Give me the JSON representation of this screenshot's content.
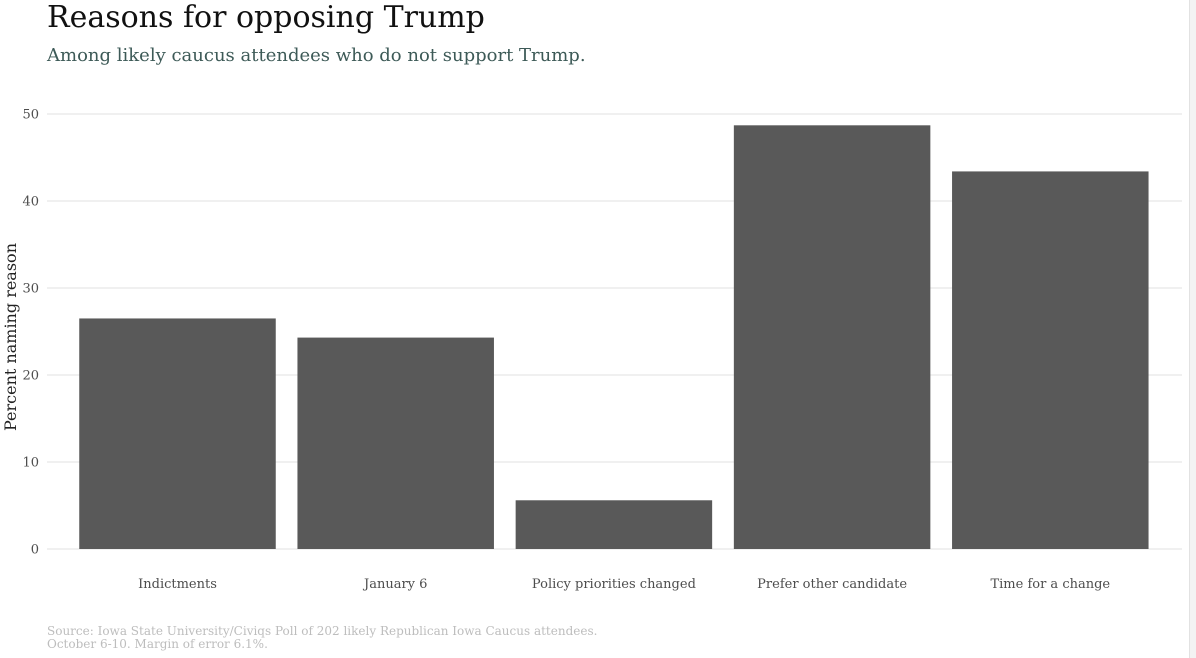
{
  "chart_data": {
    "type": "bar",
    "title": "Reasons for opposing Trump",
    "subtitle": "Among likely caucus attendees who do not support Trump.",
    "xlabel": "",
    "ylabel": "Percent naming reason",
    "ylim": [
      0,
      50
    ],
    "yticks": [
      0,
      10,
      20,
      30,
      40,
      50
    ],
    "grid": true,
    "categories": [
      "Indictments",
      "January 6",
      "Policy priorities changed",
      "Prefer other candidate",
      "Time for a change"
    ],
    "values": [
      26.5,
      24.3,
      5.6,
      48.7,
      43.4
    ],
    "bar_color": "#595959",
    "grid_color": "#ebebeb"
  },
  "source": {
    "line1": "Source: Iowa State University/Civiqs Poll of 202 likely Republican Iowa Caucus attendees.",
    "line2": "October 6-10.  Margin of error 6.1%."
  }
}
